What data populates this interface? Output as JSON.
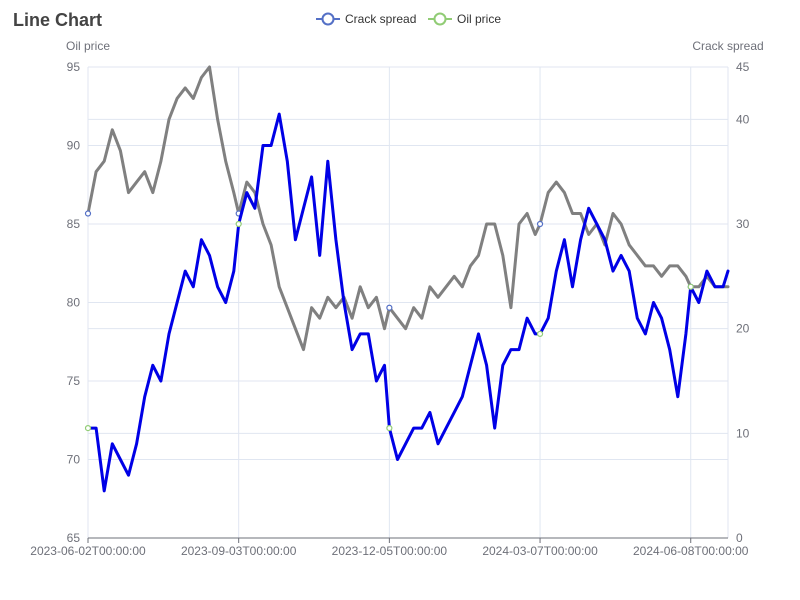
{
  "title": "Line Chart",
  "colors": {
    "crack_spread": "#808080",
    "oil_price": "#0000e6",
    "crack_spread_marker": "#5470c6",
    "oil_price_marker": "#91cc75",
    "grid": "#e0e6f1",
    "axis": "#6e7079"
  },
  "chart_data": {
    "type": "line",
    "title": "Line Chart",
    "legend": [
      "Crack spread",
      "Oil price"
    ],
    "legend_position": "top-center",
    "x_ticks": [
      "2023-06-02T00:00:00",
      "2023-09-03T00:00:00",
      "2023-12-05T00:00:00",
      "2024-03-07T00:00:00",
      "2024-06-08T00:00:00"
    ],
    "x_range": [
      "2023-06-02",
      "2024-07-01"
    ],
    "y_left": {
      "label": "Oil price",
      "range": [
        65,
        95
      ],
      "ticks": [
        65,
        70,
        75,
        80,
        85,
        90,
        95
      ]
    },
    "y_right": {
      "label": "Crack spread",
      "range": [
        0,
        45
      ],
      "ticks": [
        0,
        10,
        20,
        30,
        40,
        45
      ]
    },
    "grid": true,
    "series": [
      {
        "name": "Crack spread",
        "axis": "right",
        "x": [
          "2023-06-02",
          "2023-06-07",
          "2023-06-12",
          "2023-06-17",
          "2023-06-22",
          "2023-06-27",
          "2023-07-02",
          "2023-07-07",
          "2023-07-12",
          "2023-07-17",
          "2023-07-22",
          "2023-07-27",
          "2023-08-01",
          "2023-08-06",
          "2023-08-11",
          "2023-08-16",
          "2023-08-21",
          "2023-08-26",
          "2023-08-31",
          "2023-09-03",
          "2023-09-08",
          "2023-09-13",
          "2023-09-18",
          "2023-09-23",
          "2023-09-28",
          "2023-10-03",
          "2023-10-08",
          "2023-10-13",
          "2023-10-18",
          "2023-10-23",
          "2023-10-28",
          "2023-11-02",
          "2023-11-07",
          "2023-11-12",
          "2023-11-17",
          "2023-11-22",
          "2023-11-27",
          "2023-12-02",
          "2023-12-05",
          "2023-12-10",
          "2023-12-15",
          "2023-12-20",
          "2023-12-25",
          "2023-12-30",
          "2024-01-04",
          "2024-01-09",
          "2024-01-14",
          "2024-01-19",
          "2024-01-24",
          "2024-01-29",
          "2024-02-03",
          "2024-02-08",
          "2024-02-13",
          "2024-02-18",
          "2024-02-23",
          "2024-02-28",
          "2024-03-04",
          "2024-03-07",
          "2024-03-12",
          "2024-03-17",
          "2024-03-22",
          "2024-03-27",
          "2024-04-01",
          "2024-04-06",
          "2024-04-11",
          "2024-04-16",
          "2024-04-21",
          "2024-04-26",
          "2024-05-01",
          "2024-05-06",
          "2024-05-11",
          "2024-05-16",
          "2024-05-21",
          "2024-05-26",
          "2024-05-31",
          "2024-06-05",
          "2024-06-08",
          "2024-06-13",
          "2024-06-18",
          "2024-06-23",
          "2024-06-28",
          "2024-07-01"
        ],
        "values": [
          31,
          35,
          36,
          39,
          37,
          33,
          34,
          35,
          33,
          36,
          40,
          42,
          43,
          42,
          44,
          45,
          40,
          36,
          33,
          31,
          34,
          33,
          30,
          28,
          24,
          22,
          20,
          18,
          22,
          21,
          23,
          22,
          23,
          21,
          24,
          22,
          23,
          20,
          22,
          21,
          20,
          22,
          21,
          24,
          23,
          24,
          25,
          24,
          26,
          27,
          30,
          30,
          27,
          22,
          30,
          31,
          29,
          30,
          33,
          34,
          33,
          31,
          31,
          29,
          30,
          28,
          31,
          30,
          28,
          27,
          26,
          26,
          25,
          26,
          26,
          25,
          24,
          24,
          25,
          24,
          24,
          24
        ],
        "marker_x": [
          "2023-06-02",
          "2023-09-03",
          "2023-12-05",
          "2024-03-07",
          "2024-06-08"
        ]
      },
      {
        "name": "Oil price",
        "axis": "left",
        "x": [
          "2023-06-02",
          "2023-06-07",
          "2023-06-12",
          "2023-06-17",
          "2023-06-22",
          "2023-06-27",
          "2023-07-02",
          "2023-07-07",
          "2023-07-12",
          "2023-07-17",
          "2023-07-22",
          "2023-07-27",
          "2023-08-01",
          "2023-08-06",
          "2023-08-11",
          "2023-08-16",
          "2023-08-21",
          "2023-08-26",
          "2023-08-31",
          "2023-09-03",
          "2023-09-08",
          "2023-09-13",
          "2023-09-18",
          "2023-09-23",
          "2023-09-28",
          "2023-10-03",
          "2023-10-08",
          "2023-10-13",
          "2023-10-18",
          "2023-10-23",
          "2023-10-28",
          "2023-11-02",
          "2023-11-07",
          "2023-11-12",
          "2023-11-17",
          "2023-11-22",
          "2023-11-27",
          "2023-12-02",
          "2023-12-05",
          "2023-12-10",
          "2023-12-15",
          "2023-12-20",
          "2023-12-25",
          "2023-12-30",
          "2024-01-04",
          "2024-01-09",
          "2024-01-14",
          "2024-01-19",
          "2024-01-24",
          "2024-01-29",
          "2024-02-03",
          "2024-02-08",
          "2024-02-13",
          "2024-02-18",
          "2024-02-23",
          "2024-02-28",
          "2024-03-04",
          "2024-03-07",
          "2024-03-12",
          "2024-03-17",
          "2024-03-22",
          "2024-03-27",
          "2024-04-01",
          "2024-04-06",
          "2024-04-11",
          "2024-04-16",
          "2024-04-21",
          "2024-04-26",
          "2024-05-01",
          "2024-05-06",
          "2024-05-11",
          "2024-05-16",
          "2024-05-21",
          "2024-05-26",
          "2024-05-31",
          "2024-06-05",
          "2024-06-08",
          "2024-06-13",
          "2024-06-18",
          "2024-06-23",
          "2024-06-28",
          "2024-07-01"
        ],
        "values": [
          72,
          72,
          68,
          71,
          70,
          69,
          71,
          74,
          76,
          75,
          78,
          80,
          82,
          81,
          84,
          83,
          81,
          80,
          82,
          85,
          87,
          86,
          90,
          90,
          92,
          89,
          84,
          86,
          88,
          83,
          89,
          84,
          80,
          77,
          78,
          78,
          75,
          76,
          72,
          70,
          71,
          72,
          72,
          73,
          71,
          72,
          73,
          74,
          76,
          78,
          76,
          72,
          76,
          77,
          77,
          79,
          78,
          78,
          79,
          82,
          84,
          81,
          84,
          86,
          85,
          84,
          82,
          83,
          82,
          79,
          78,
          80,
          79,
          77,
          74,
          78,
          81,
          80,
          82,
          81,
          81,
          82
        ],
        "marker_x": [
          "2023-06-02",
          "2023-09-03",
          "2023-12-05",
          "2024-03-07",
          "2024-06-08"
        ]
      }
    ]
  }
}
